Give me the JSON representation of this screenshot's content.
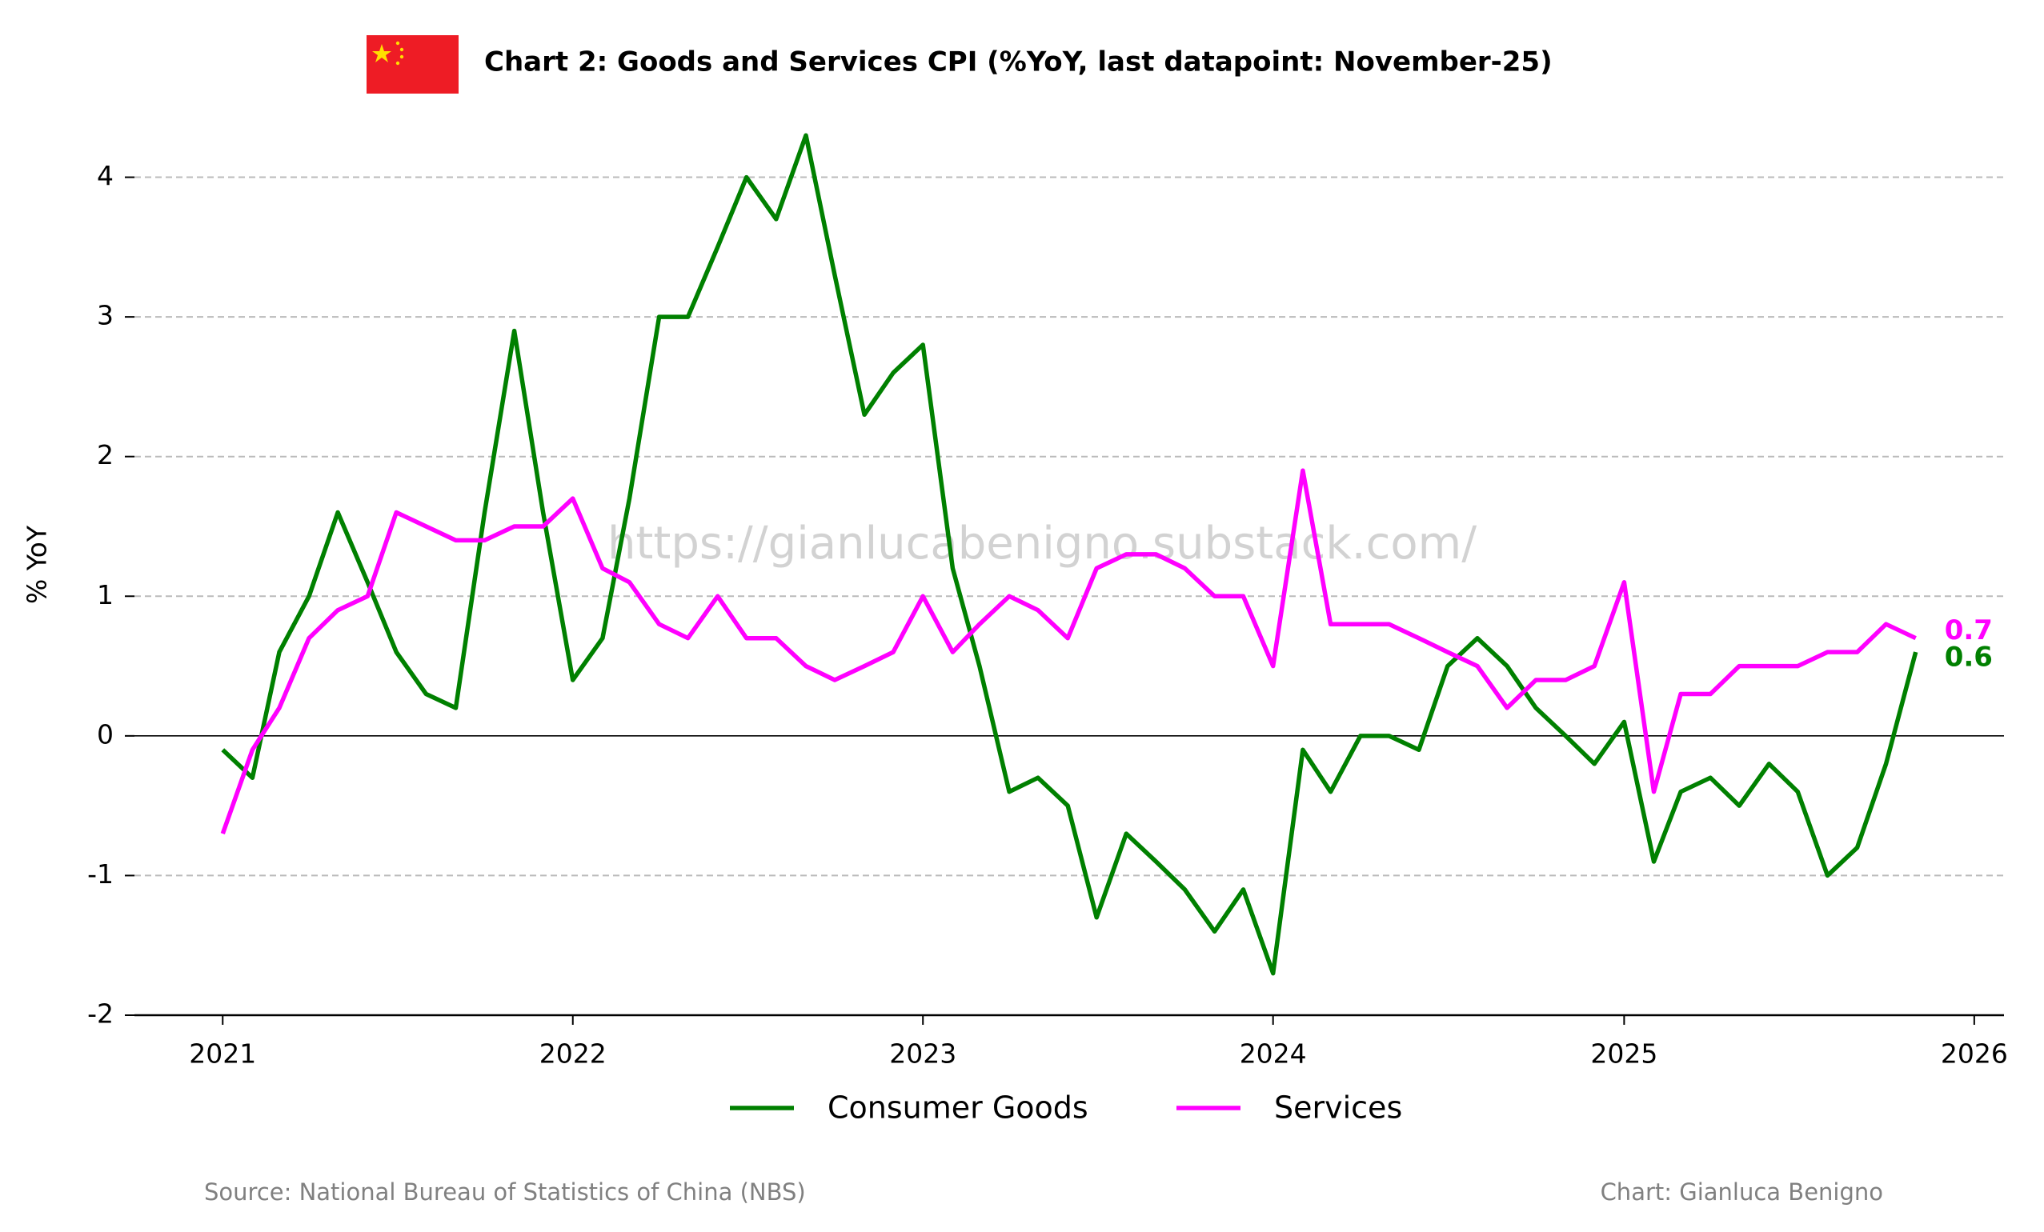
{
  "chart_data": {
    "type": "line",
    "title": "Chart 2: Goods and Services CPI (%YoY, last datapoint: November-25)",
    "ylabel": "% YoY",
    "watermark": "https://gianlucabenigno.substack.com/",
    "source": "Source: National Bureau of Statistics of China (NBS)",
    "credit": "Chart: Gianluca Benigno",
    "x": [
      "2021-01",
      "2021-02",
      "2021-03",
      "2021-04",
      "2021-05",
      "2021-06",
      "2021-07",
      "2021-08",
      "2021-09",
      "2021-10",
      "2021-11",
      "2021-12",
      "2022-01",
      "2022-02",
      "2022-03",
      "2022-04",
      "2022-05",
      "2022-06",
      "2022-07",
      "2022-08",
      "2022-09",
      "2022-10",
      "2022-11",
      "2022-12",
      "2023-01",
      "2023-02",
      "2023-03",
      "2023-04",
      "2023-05",
      "2023-06",
      "2023-07",
      "2023-08",
      "2023-09",
      "2023-10",
      "2023-11",
      "2023-12",
      "2024-01",
      "2024-02",
      "2024-03",
      "2024-04",
      "2024-05",
      "2024-06",
      "2024-07",
      "2024-08",
      "2024-09",
      "2024-10",
      "2024-11",
      "2024-12",
      "2025-01",
      "2025-02",
      "2025-03",
      "2025-04",
      "2025-05",
      "2025-06",
      "2025-07",
      "2025-08",
      "2025-09",
      "2025-10",
      "2025-11"
    ],
    "series": [
      {
        "name": "Consumer Goods",
        "color": "#008000",
        "values": [
          -0.1,
          -0.3,
          0.6,
          1.0,
          1.6,
          1.1,
          0.6,
          0.3,
          0.2,
          1.6,
          2.9,
          1.6,
          0.4,
          0.7,
          1.7,
          3.0,
          3.0,
          3.5,
          4.0,
          3.7,
          4.3,
          3.3,
          2.3,
          2.6,
          2.8,
          1.2,
          0.5,
          -0.4,
          -0.3,
          -0.5,
          -1.3,
          -0.7,
          -0.9,
          -1.1,
          -1.4,
          -1.1,
          -1.7,
          -0.1,
          -0.4,
          0.0,
          0.0,
          -0.1,
          0.5,
          0.7,
          0.5,
          0.2,
          0.0,
          -0.2,
          0.1,
          -0.9,
          -0.4,
          -0.3,
          -0.5,
          -0.2,
          -0.4,
          -1.0,
          -0.8,
          -0.2,
          0.6
        ]
      },
      {
        "name": "Services",
        "color": "#ff00ff",
        "values": [
          -0.7,
          -0.1,
          0.2,
          0.7,
          0.9,
          1.0,
          1.6,
          1.5,
          1.4,
          1.4,
          1.5,
          1.5,
          1.7,
          1.2,
          1.1,
          0.8,
          0.7,
          1.0,
          0.7,
          0.7,
          0.5,
          0.4,
          0.5,
          0.6,
          1.0,
          0.6,
          0.8,
          1.0,
          0.9,
          0.7,
          1.2,
          1.3,
          1.3,
          1.2,
          1.0,
          1.0,
          0.5,
          1.9,
          0.8,
          0.8,
          0.8,
          0.7,
          0.6,
          0.5,
          0.2,
          0.4,
          0.4,
          0.5,
          1.1,
          -0.4,
          0.3,
          0.3,
          0.5,
          0.5,
          0.5,
          0.6,
          0.6,
          0.8,
          0.7
        ]
      }
    ],
    "xlim": [
      "2020-10",
      "2026-02"
    ],
    "xticks": [
      "2021",
      "2022",
      "2023",
      "2024",
      "2025",
      "2026"
    ],
    "ylim": [
      -2,
      4.45
    ],
    "yticks": [
      -2,
      -1,
      0,
      1,
      2,
      3,
      4
    ],
    "grid": true,
    "legend": "bottom"
  }
}
